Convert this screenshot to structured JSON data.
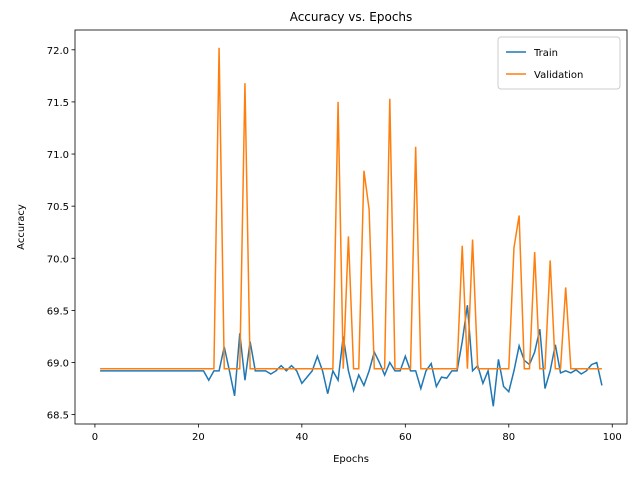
{
  "chart_data": {
    "type": "line",
    "title": "Accuracy vs. Epochs",
    "x_label": "Epochs",
    "y_label": "Accuracy",
    "x": [
      1,
      2,
      3,
      4,
      5,
      6,
      7,
      8,
      9,
      10,
      11,
      12,
      13,
      14,
      15,
      16,
      17,
      18,
      19,
      20,
      21,
      22,
      23,
      24,
      25,
      26,
      27,
      28,
      29,
      30,
      31,
      32,
      33,
      34,
      35,
      36,
      37,
      38,
      39,
      40,
      41,
      42,
      43,
      44,
      45,
      46,
      47,
      48,
      49,
      50,
      51,
      52,
      53,
      54,
      55,
      56,
      57,
      58,
      59,
      60,
      61,
      62,
      63,
      64,
      65,
      66,
      67,
      68,
      69,
      70,
      71,
      72,
      73,
      74,
      75,
      76,
      77,
      78,
      79,
      80,
      81,
      82,
      83,
      84,
      85,
      86,
      87,
      88,
      89,
      90,
      91,
      92,
      93,
      94,
      95,
      96,
      97,
      98
    ],
    "series": [
      {
        "name": "Train",
        "color": "#1f77b4",
        "values": [
          68.92,
          68.92,
          68.92,
          68.92,
          68.92,
          68.92,
          68.92,
          68.92,
          68.92,
          68.92,
          68.92,
          68.92,
          68.92,
          68.92,
          68.92,
          68.92,
          68.92,
          68.92,
          68.92,
          68.92,
          68.92,
          68.83,
          68.92,
          68.92,
          69.15,
          68.92,
          68.68,
          69.28,
          68.83,
          69.2,
          68.92,
          68.92,
          68.92,
          68.89,
          68.92,
          68.97,
          68.92,
          68.97,
          68.92,
          68.8,
          68.86,
          68.92,
          69.06,
          68.92,
          68.7,
          68.92,
          68.83,
          69.25,
          68.92,
          68.73,
          68.88,
          68.78,
          68.92,
          69.1,
          69.0,
          68.88,
          69.0,
          68.92,
          68.92,
          69.06,
          68.92,
          68.92,
          68.75,
          68.92,
          68.99,
          68.77,
          68.86,
          68.85,
          68.92,
          68.92,
          69.2,
          69.55,
          68.92,
          68.97,
          68.8,
          68.92,
          68.58,
          69.03,
          68.77,
          68.72,
          68.92,
          69.16,
          69.02,
          68.98,
          69.1,
          69.32,
          68.75,
          68.92,
          69.17,
          68.9,
          68.92,
          68.9,
          68.93,
          68.89,
          68.92,
          68.98,
          69.0,
          68.78
        ]
      },
      {
        "name": "Validation",
        "color": "#ff7f0e",
        "values": [
          68.94,
          68.94,
          68.94,
          68.94,
          68.94,
          68.94,
          68.94,
          68.94,
          68.94,
          68.94,
          68.94,
          68.94,
          68.94,
          68.94,
          68.94,
          68.94,
          68.94,
          68.94,
          68.94,
          68.94,
          68.94,
          68.94,
          68.94,
          72.02,
          68.94,
          68.94,
          68.94,
          68.94,
          71.68,
          68.94,
          68.94,
          68.94,
          68.94,
          68.94,
          68.94,
          68.94,
          68.94,
          68.94,
          68.94,
          68.94,
          68.94,
          68.94,
          68.94,
          68.94,
          68.94,
          68.94,
          71.5,
          68.94,
          70.21,
          68.94,
          68.94,
          70.84,
          70.47,
          68.94,
          68.94,
          68.94,
          71.53,
          68.94,
          68.94,
          68.94,
          68.94,
          71.07,
          68.94,
          68.94,
          68.94,
          68.94,
          68.94,
          68.94,
          68.94,
          68.94,
          70.12,
          68.94,
          70.18,
          68.94,
          68.94,
          68.94,
          68.94,
          68.94,
          68.94,
          68.94,
          70.1,
          70.41,
          68.94,
          68.94,
          70.06,
          68.94,
          68.94,
          69.98,
          68.94,
          68.94,
          69.72,
          68.94,
          68.94,
          68.94,
          68.94,
          68.94,
          68.94,
          68.94
        ]
      }
    ],
    "xlim": [
      -3.85,
      102.85
    ],
    "ylim": [
      68.41,
      72.19
    ],
    "xticks": [
      0,
      20,
      40,
      60,
      80,
      100
    ],
    "yticks": [
      68.5,
      {
        "value": 69,
        "label": "69.0"
      },
      69.5,
      {
        "value": 70,
        "label": "70.0"
      },
      70.5,
      {
        "value": 71,
        "label": "71.0"
      },
      71.5,
      {
        "value": 72,
        "label": "72.0"
      }
    ],
    "legend": "upper right",
    "grid": false
  }
}
